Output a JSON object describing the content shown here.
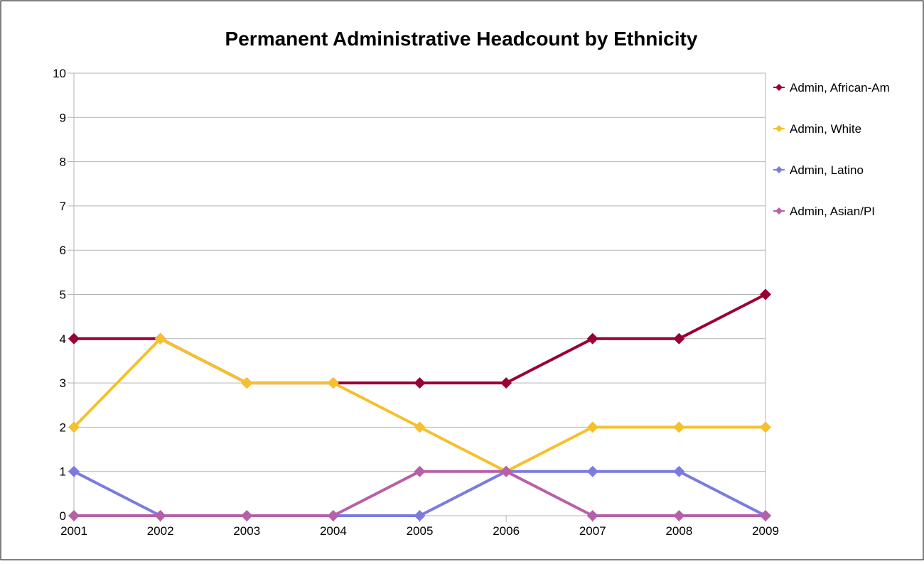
{
  "chart_data": {
    "type": "line",
    "title": "Permanent Administrative Headcount by Ethnicity",
    "xlabel": "",
    "ylabel": "",
    "categories": [
      "2001",
      "2002",
      "2003",
      "2004",
      "2005",
      "2006",
      "2007",
      "2008",
      "2009"
    ],
    "ylim": [
      0,
      10
    ],
    "yticks": [
      "0",
      "1",
      "2",
      "3",
      "4",
      "5",
      "6",
      "7",
      "8",
      "9",
      "10"
    ],
    "grid": true,
    "legend_position": "right",
    "series": [
      {
        "name": "Admin, African-Am",
        "color": "#990033",
        "values": [
          4,
          4,
          3,
          3,
          3,
          3,
          4,
          4,
          5
        ]
      },
      {
        "name": "Admin, White",
        "color": "#f6c02c",
        "values": [
          2,
          4,
          3,
          3,
          2,
          1,
          2,
          2,
          2
        ]
      },
      {
        "name": "Admin, Latino",
        "color": "#7b7bdf",
        "values": [
          1,
          0,
          0,
          0,
          0,
          1,
          1,
          1,
          0
        ]
      },
      {
        "name": "Admin, Asian/PI",
        "color": "#b660a8",
        "values": [
          0,
          0,
          0,
          0,
          1,
          1,
          0,
          0,
          0
        ]
      }
    ]
  }
}
